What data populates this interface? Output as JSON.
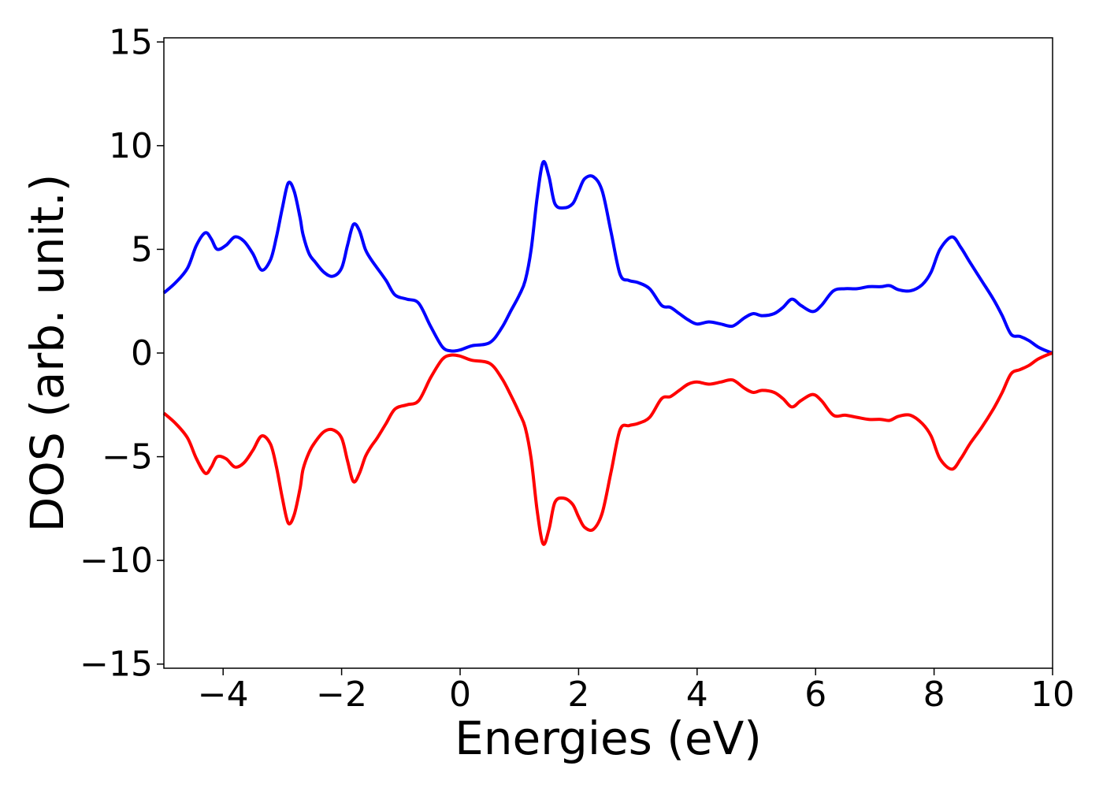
{
  "chart_data": {
    "type": "line",
    "xlabel": "Energies (eV)",
    "ylabel": "DOS (arb. unit.)",
    "xlim": [
      -5,
      10
    ],
    "ylim": [
      -15.2,
      15.2
    ],
    "xticks": [
      -4,
      -2,
      0,
      2,
      4,
      6,
      8,
      10
    ],
    "xtick_labels": [
      "−4",
      "−2",
      "0",
      "2",
      "4",
      "6",
      "8",
      "10"
    ],
    "yticks": [
      -15,
      -10,
      -5,
      0,
      5,
      10,
      15
    ],
    "ytick_labels": [
      "−15",
      "−10",
      "−5",
      "0",
      "5",
      "10",
      "15"
    ],
    "grid": false,
    "legend": "none",
    "series": [
      {
        "color": "#0000ff",
        "x": [
          -5.0,
          -4.8,
          -4.6,
          -4.45,
          -4.3,
          -4.2,
          -4.1,
          -3.95,
          -3.8,
          -3.65,
          -3.5,
          -3.35,
          -3.2,
          -3.1,
          -3.0,
          -2.9,
          -2.8,
          -2.7,
          -2.65,
          -2.55,
          -2.45,
          -2.3,
          -2.15,
          -2.0,
          -1.9,
          -1.8,
          -1.7,
          -1.6,
          -1.5,
          -1.4,
          -1.25,
          -1.1,
          -0.9,
          -0.7,
          -0.5,
          -0.3,
          -0.15,
          0.0,
          0.2,
          0.5,
          0.7,
          0.85,
          1.0,
          1.1,
          1.2,
          1.3,
          1.4,
          1.5,
          1.6,
          1.75,
          1.9,
          2.0,
          2.1,
          2.25,
          2.4,
          2.55,
          2.7,
          2.85,
          3.0,
          3.2,
          3.4,
          3.55,
          3.7,
          3.85,
          4.0,
          4.2,
          4.4,
          4.6,
          4.8,
          4.95,
          5.1,
          5.3,
          5.45,
          5.6,
          5.75,
          5.95,
          6.1,
          6.3,
          6.5,
          6.7,
          6.9,
          7.1,
          7.25,
          7.4,
          7.6,
          7.8,
          7.95,
          8.1,
          8.3,
          8.45,
          8.6,
          8.8,
          9.0,
          9.15,
          9.3,
          9.45,
          9.6,
          9.75,
          9.9,
          10.0
        ],
        "y": [
          2.9,
          3.4,
          4.1,
          5.2,
          5.8,
          5.5,
          5.0,
          5.2,
          5.6,
          5.4,
          4.8,
          4.0,
          4.5,
          5.6,
          7.0,
          8.2,
          7.8,
          6.5,
          5.7,
          4.8,
          4.4,
          3.9,
          3.7,
          4.1,
          5.2,
          6.2,
          5.9,
          5.0,
          4.5,
          4.1,
          3.5,
          2.8,
          2.6,
          2.4,
          1.3,
          0.3,
          0.1,
          0.15,
          0.35,
          0.5,
          1.2,
          2.0,
          2.8,
          3.5,
          5.0,
          7.5,
          9.2,
          8.5,
          7.2,
          7.0,
          7.2,
          7.8,
          8.4,
          8.5,
          7.8,
          5.8,
          3.8,
          3.5,
          3.4,
          3.1,
          2.3,
          2.2,
          1.9,
          1.6,
          1.4,
          1.5,
          1.4,
          1.3,
          1.7,
          1.9,
          1.8,
          1.9,
          2.2,
          2.6,
          2.3,
          2.0,
          2.3,
          3.0,
          3.1,
          3.1,
          3.2,
          3.2,
          3.25,
          3.05,
          3.0,
          3.3,
          3.9,
          5.0,
          5.6,
          5.1,
          4.4,
          3.5,
          2.6,
          1.8,
          0.9,
          0.8,
          0.6,
          0.3,
          0.1,
          0.0
        ]
      },
      {
        "color": "#ff0000",
        "x": [
          -5.0,
          -4.8,
          -4.6,
          -4.45,
          -4.3,
          -4.2,
          -4.1,
          -3.95,
          -3.8,
          -3.65,
          -3.5,
          -3.35,
          -3.2,
          -3.1,
          -3.0,
          -2.9,
          -2.8,
          -2.7,
          -2.65,
          -2.55,
          -2.45,
          -2.3,
          -2.15,
          -2.0,
          -1.9,
          -1.8,
          -1.7,
          -1.6,
          -1.5,
          -1.4,
          -1.25,
          -1.1,
          -0.9,
          -0.7,
          -0.5,
          -0.3,
          -0.15,
          0.0,
          0.2,
          0.5,
          0.7,
          0.85,
          1.0,
          1.1,
          1.2,
          1.3,
          1.4,
          1.5,
          1.6,
          1.75,
          1.9,
          2.0,
          2.1,
          2.25,
          2.4,
          2.55,
          2.7,
          2.85,
          3.0,
          3.2,
          3.4,
          3.55,
          3.7,
          3.85,
          4.0,
          4.2,
          4.4,
          4.6,
          4.8,
          4.95,
          5.1,
          5.3,
          5.45,
          5.6,
          5.75,
          5.95,
          6.1,
          6.3,
          6.5,
          6.7,
          6.9,
          7.1,
          7.25,
          7.4,
          7.6,
          7.8,
          7.95,
          8.1,
          8.3,
          8.45,
          8.6,
          8.8,
          9.0,
          9.15,
          9.3,
          9.45,
          9.6,
          9.75,
          9.9,
          10.0
        ],
        "y": [
          -2.9,
          -3.4,
          -4.1,
          -5.1,
          -5.8,
          -5.5,
          -5.0,
          -5.1,
          -5.5,
          -5.3,
          -4.7,
          -4.0,
          -4.4,
          -5.5,
          -7.0,
          -8.2,
          -7.8,
          -6.5,
          -5.6,
          -4.8,
          -4.3,
          -3.8,
          -3.7,
          -4.1,
          -5.2,
          -6.2,
          -5.8,
          -5.0,
          -4.5,
          -4.1,
          -3.4,
          -2.7,
          -2.5,
          -2.3,
          -1.2,
          -0.3,
          -0.1,
          -0.15,
          -0.35,
          -0.5,
          -1.2,
          -2.0,
          -2.9,
          -3.6,
          -5.1,
          -7.6,
          -9.2,
          -8.5,
          -7.2,
          -7.0,
          -7.3,
          -7.9,
          -8.4,
          -8.5,
          -7.7,
          -5.7,
          -3.7,
          -3.5,
          -3.4,
          -3.1,
          -2.2,
          -2.1,
          -1.8,
          -1.5,
          -1.4,
          -1.5,
          -1.4,
          -1.3,
          -1.7,
          -1.9,
          -1.8,
          -1.9,
          -2.2,
          -2.6,
          -2.3,
          -2.0,
          -2.3,
          -3.0,
          -3.0,
          -3.1,
          -3.2,
          -3.2,
          -3.25,
          -3.05,
          -3.0,
          -3.4,
          -4.0,
          -5.1,
          -5.6,
          -5.1,
          -4.4,
          -3.6,
          -2.7,
          -1.9,
          -1.0,
          -0.8,
          -0.6,
          -0.3,
          -0.1,
          0.0
        ]
      }
    ]
  }
}
